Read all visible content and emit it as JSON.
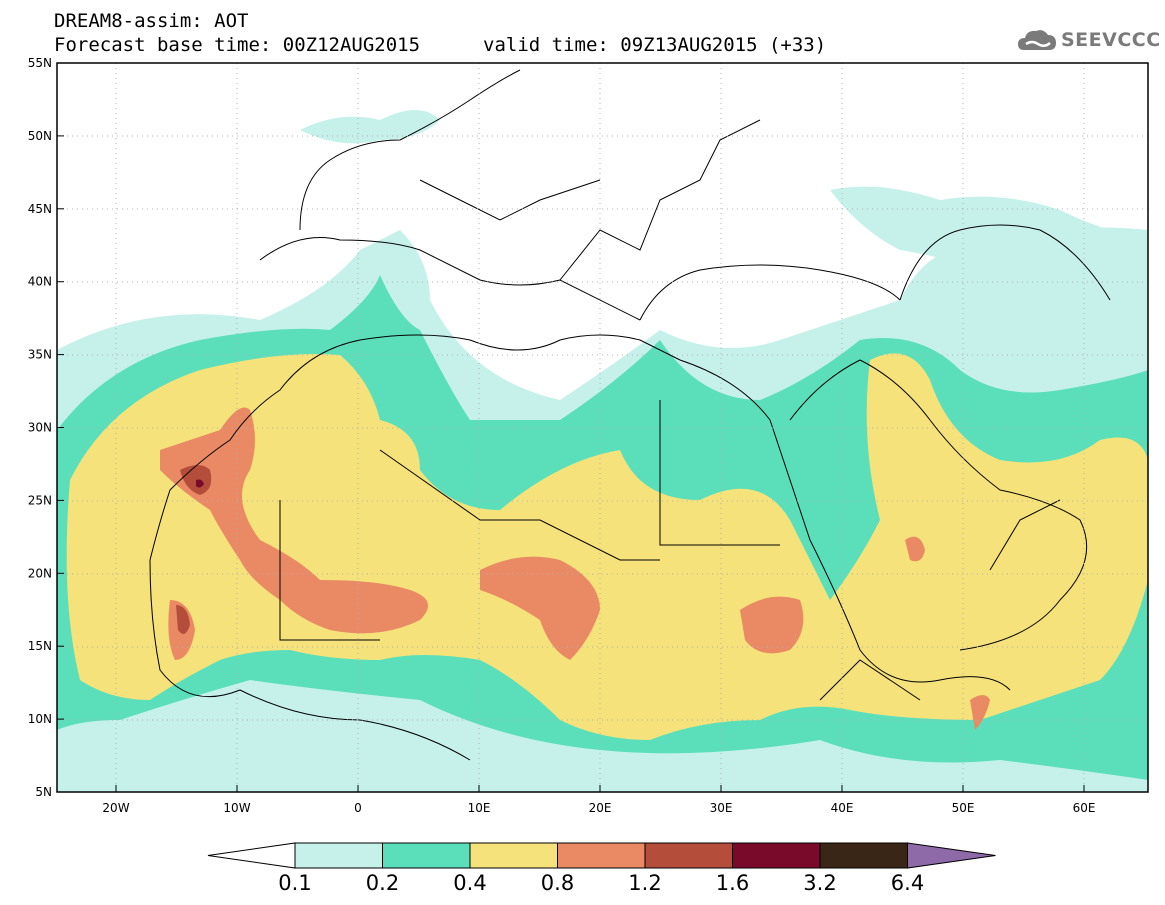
{
  "title_line1": "DREAM8-assim: AOT",
  "title_line2": "Forecast base time: 00Z12AUG2015",
  "valid_time": "valid time: 09Z13AUG2015 (+33)",
  "logo_text": "SEEVCCC",
  "map": {
    "lat_labels": [
      "55N",
      "50N",
      "45N",
      "40N",
      "35N",
      "30N",
      "25N",
      "20N",
      "15N",
      "10N",
      "5N"
    ],
    "lon_labels": [
      "20W",
      "10W",
      "0",
      "10E",
      "20E",
      "30E",
      "40E",
      "50E",
      "60E"
    ],
    "lon_range": [
      -25,
      65
    ],
    "lat_range": [
      5,
      55
    ]
  },
  "colorbar": {
    "thresholds": [
      "0.1",
      "0.2",
      "0.4",
      "0.8",
      "1.2",
      "1.6",
      "3.2",
      "6.4"
    ],
    "colors": [
      "#ffffff",
      "#c6f1eb",
      "#5bdfbb",
      "#f5e27a",
      "#e98a65",
      "#b54d3b",
      "#7a0a2a",
      "#3a2616",
      "#8e6aa8"
    ]
  }
}
